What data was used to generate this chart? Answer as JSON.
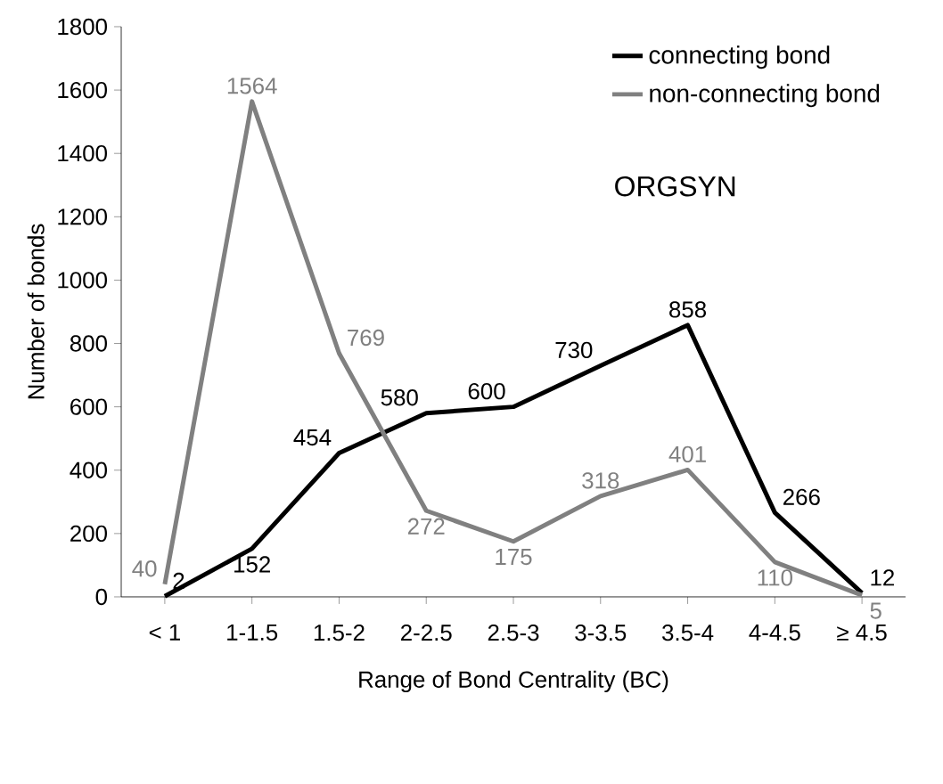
{
  "chart_data": {
    "type": "line",
    "xlabel": "Range of Bond Centrality (BC)",
    "ylabel": "Number of bonds",
    "categories": [
      "< 1",
      "1-1.5",
      "1.5-2",
      "2-2.5",
      "2.5-3",
      "3-3.5",
      "3.5-4",
      "4-4.5",
      "≥ 4.5"
    ],
    "series": [
      {
        "name": "connecting bond",
        "color": "#000000",
        "values": [
          2,
          152,
          454,
          580,
          600,
          730,
          858,
          266,
          12
        ]
      },
      {
        "name": "non-connecting bond",
        "color": "#808080",
        "values": [
          40,
          1564,
          769,
          272,
          175,
          318,
          401,
          110,
          5
        ]
      }
    ],
    "ylim": [
      0,
      1800
    ],
    "yticks": [
      0,
      200,
      400,
      600,
      800,
      1000,
      1200,
      1400,
      1600,
      1800
    ],
    "annotations": [
      "ORGSYN"
    ],
    "data_labels": true,
    "legend": "top right",
    "grid": false,
    "marker": "none",
    "line_style": "solid"
  }
}
